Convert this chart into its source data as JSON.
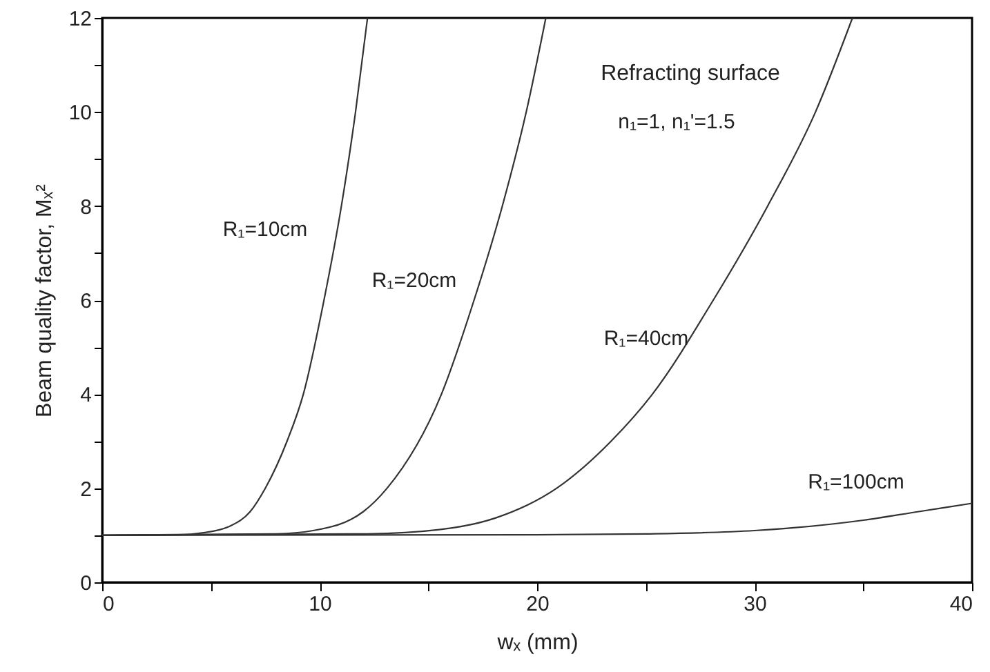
{
  "chart_data": {
    "type": "line",
    "xlabel": "wₓ (mm)",
    "ylabel": "Beam quality factor, Mₓ²",
    "annotations": [
      "Refracting surface",
      "n₁=1, n₁'=1.5"
    ],
    "xlim": [
      0,
      40
    ],
    "ylim": [
      0,
      12
    ],
    "xticks": [
      0,
      {
        "value": 5,
        "label": null
      },
      10,
      {
        "value": 15,
        "label": null
      },
      20,
      {
        "value": 25,
        "label": null
      },
      30,
      {
        "value": 35,
        "label": null
      },
      40
    ],
    "yticks": [
      0,
      {
        "value": 1,
        "label": null
      },
      2,
      {
        "value": 3,
        "label": null
      },
      4,
      {
        "value": 5,
        "label": null
      },
      6,
      {
        "value": 7,
        "label": null
      },
      8,
      {
        "value": 9,
        "label": null
      },
      10,
      {
        "value": 11,
        "label": null
      },
      12
    ],
    "grid": false,
    "series": [
      {
        "name": "R₁=10cm",
        "color": "#333333",
        "x": [
          0,
          3.5,
          4.6,
          5.9,
          6.8,
          7.5,
          8.5,
          9.25,
          10.2,
          11.0,
          11.65,
          12.2
        ],
        "values": [
          1,
          1.01,
          1.05,
          1.2,
          1.5,
          2,
          3,
          4,
          6,
          8,
          10,
          12
        ]
      },
      {
        "name": "R₁=20cm",
        "color": "#333333",
        "x": [
          0,
          8.0,
          9.7,
          12.0,
          13.1,
          15.6,
          17.1,
          18.4,
          19.5,
          20.4
        ],
        "values": [
          1,
          1.03,
          1.1,
          1.5,
          2,
          4,
          6,
          8,
          10,
          12
        ]
      },
      {
        "name": "R₁=40cm",
        "color": "#333333",
        "x": [
          0,
          12.2,
          15.5,
          18.1,
          20.9,
          23.4,
          25.3,
          28.1,
          30.6,
          32.8,
          34.5
        ],
        "values": [
          1,
          1.03,
          1.12,
          1.37,
          2,
          3,
          4,
          6,
          8,
          10,
          12
        ]
      },
      {
        "name": "R₁=100cm",
        "color": "#333333",
        "x": [
          0,
          20,
          25,
          30,
          35,
          37.5,
          40
        ],
        "values": [
          1,
          1.01,
          1.03,
          1.1,
          1.32,
          1.5,
          1.68
        ]
      }
    ]
  }
}
